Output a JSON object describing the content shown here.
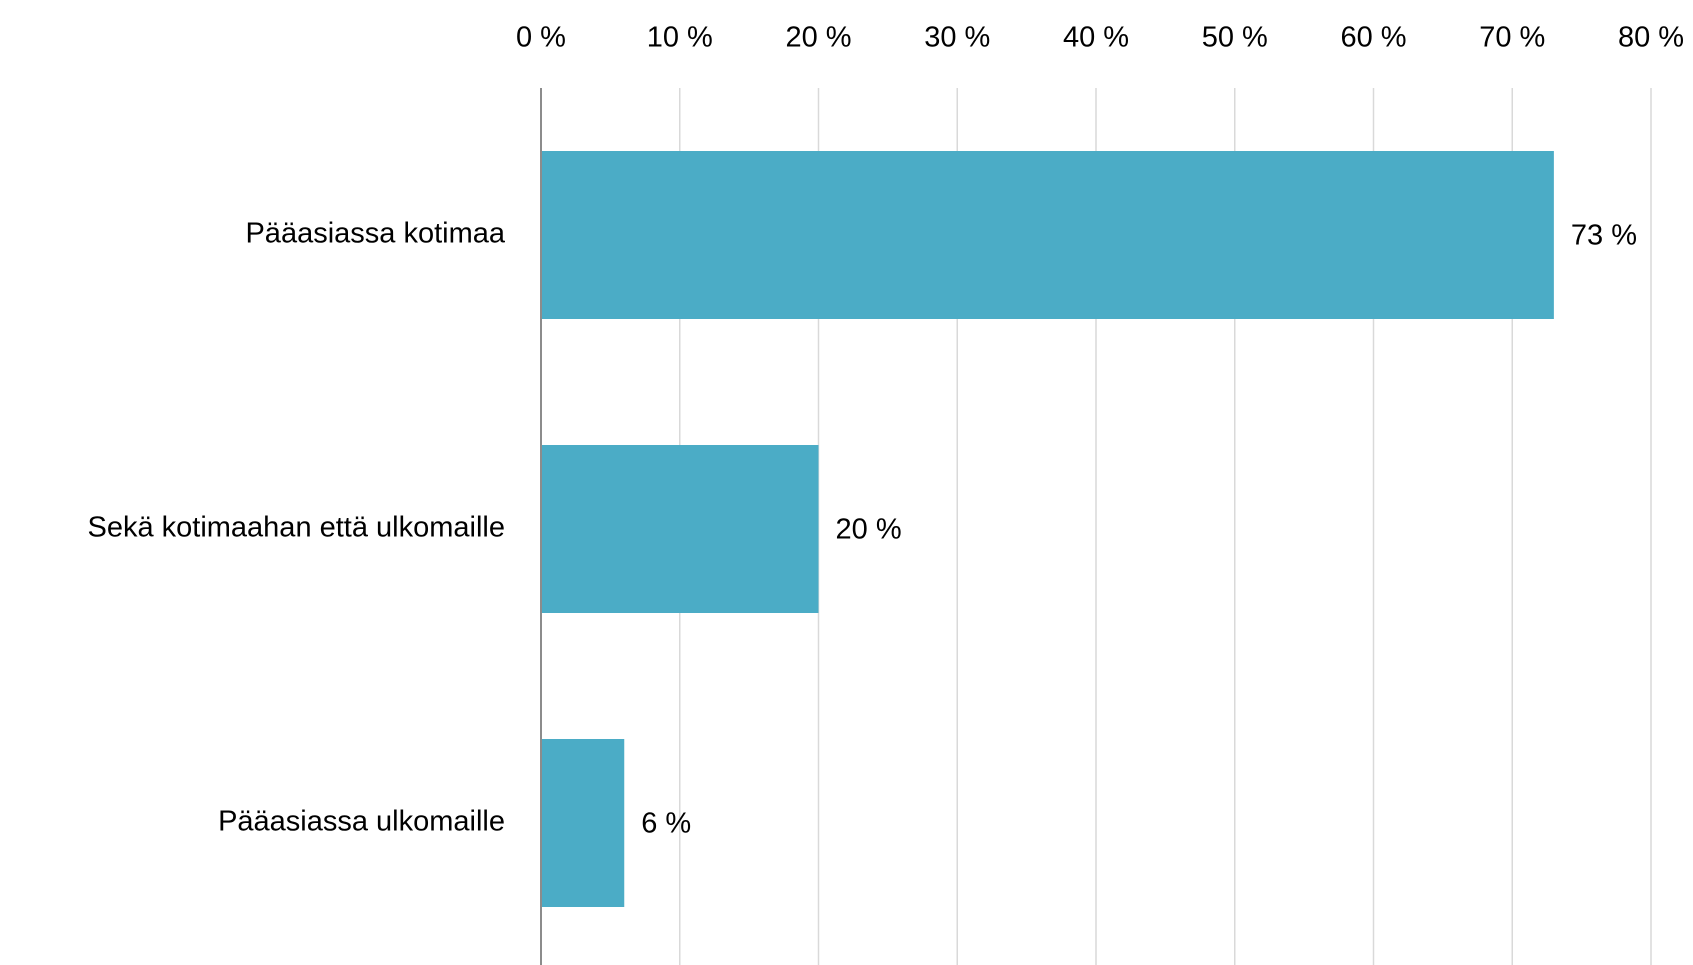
{
  "chart_data": {
    "type": "bar",
    "orientation": "horizontal",
    "categories": [
      "Pääasiassa kotimaa",
      "Sekä kotimaahan että ulkomaille",
      "Pääasiassa ulkomaille"
    ],
    "values": [
      73,
      20,
      6
    ],
    "data_labels": [
      "73 %",
      "20 %",
      "6 %"
    ],
    "xlim": [
      0,
      80
    ],
    "x_ticks": [
      0,
      10,
      20,
      30,
      40,
      50,
      60,
      70,
      80
    ],
    "x_tick_labels": [
      "0 %",
      "10 %",
      "20 %",
      "30 %",
      "40 %",
      "50 %",
      "60 %",
      "70 %",
      "80 %"
    ],
    "x_axis_position": "top",
    "grid": true,
    "title": "",
    "xlabel": "",
    "ylabel": "",
    "bar_color": "#4bacc6",
    "gridline_color": "#d9d9d9",
    "axis_color": "#8c8c8c"
  }
}
